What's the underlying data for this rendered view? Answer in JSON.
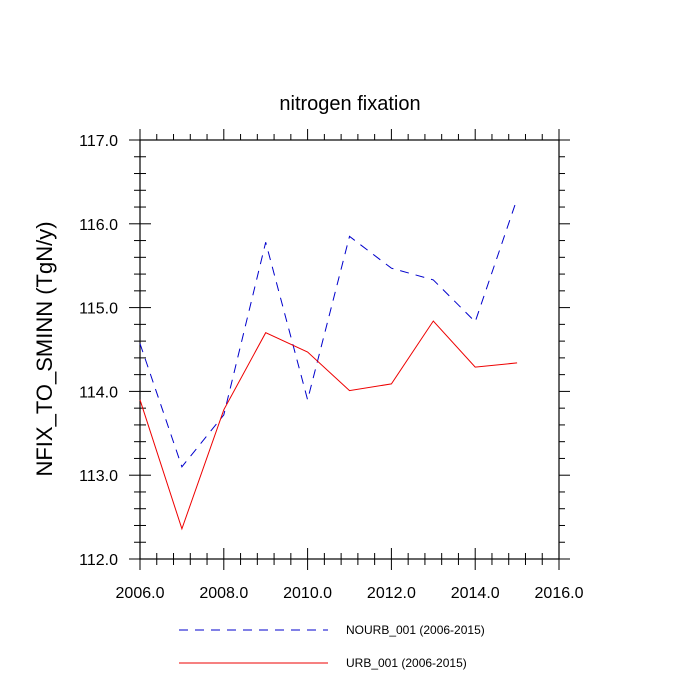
{
  "chart_data": {
    "type": "line",
    "title": "nitrogen fixation",
    "xlabel": "",
    "ylabel": "NFIX_TO_SMINN  (TgN/y)",
    "xlim": [
      2006,
      2016
    ],
    "ylim": [
      112,
      117
    ],
    "x_ticks": [
      2006,
      2008,
      2010,
      2012,
      2014,
      2016
    ],
    "x_tick_labels": [
      "2006.0",
      "2008.0",
      "2010.0",
      "2012.0",
      "2014.0",
      "2016.0"
    ],
    "y_ticks": [
      112,
      113,
      114,
      115,
      116,
      117
    ],
    "y_tick_labels": [
      "112.0",
      "113.0",
      "114.0",
      "115.0",
      "116.0",
      "117.0"
    ],
    "x": [
      2006,
      2007,
      2008,
      2009,
      2010,
      2011,
      2012,
      2013,
      2014,
      2015
    ],
    "series": [
      {
        "name": "NOURB_001 (2006-2015)",
        "color": "#0000cc",
        "dash": "dashed",
        "values": [
          114.57,
          113.1,
          113.72,
          115.78,
          113.9,
          115.85,
          115.47,
          115.33,
          114.83,
          116.3
        ]
      },
      {
        "name": "URB_001 (2006-2015)",
        "color": "#ee0000",
        "dash": "solid",
        "values": [
          113.9,
          112.36,
          113.78,
          114.7,
          114.47,
          114.01,
          114.09,
          114.84,
          114.29,
          114.34
        ]
      }
    ],
    "legend_position": "bottom"
  }
}
